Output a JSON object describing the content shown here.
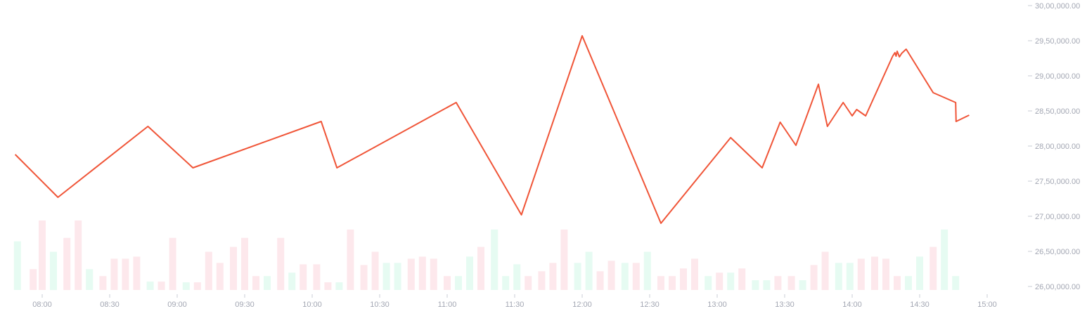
{
  "colors": {
    "line": "#f05538",
    "volume_up": "#e6fbf2",
    "volume_down": "#fde8ec",
    "tick_label": "#a3a7b3",
    "tick_mark": "#c9ccd4"
  },
  "chart_data": {
    "type": "line",
    "title": "",
    "xlabel": "",
    "ylabel": "",
    "grid": false,
    "legend": "none",
    "ylim": [
      2600000,
      3000000
    ],
    "xlim": [
      "07:48",
      "15:00"
    ],
    "y_ticks": [
      "30,00,000.00",
      "29,50,000.00",
      "29,00,000.00",
      "28,50,000.00",
      "28,00,000.00",
      "27,50,000.00",
      "27,00,000.00",
      "26,50,000.00",
      "26,00,000.00"
    ],
    "x_ticks": [
      "08:00",
      "08:30",
      "09:00",
      "09:30",
      "10:00",
      "10:30",
      "11:00",
      "11:30",
      "12:00",
      "12:30",
      "13:00",
      "13:30",
      "14:00",
      "14:30",
      "15:00"
    ],
    "series": [
      {
        "x": [
          "07:48",
          "08:07",
          "08:47",
          "09:07",
          "10:04",
          "10:11",
          "11:04",
          "11:33",
          "12:00",
          "12:35",
          "13:06",
          "13:20",
          "13:28",
          "13:35",
          "13:45",
          "13:49",
          "13:56",
          "14:00",
          "14:02",
          "14:06",
          "14:18",
          "14:19",
          "14:19.5",
          "14:20",
          "14:21",
          "14:22",
          "14:24",
          "14:36",
          "14:46",
          "14:46.2",
          "14:52"
        ],
        "values": [
          2788000,
          2727000,
          2828000,
          2769000,
          2835000,
          2769000,
          2862000,
          2702000,
          2957000,
          2690000,
          2812000,
          2769000,
          2834000,
          2801000,
          2888000,
          2828000,
          2862000,
          2843000,
          2852000,
          2843000,
          2928000,
          2933000,
          2928000,
          2935000,
          2927000,
          2932000,
          2938000,
          2876000,
          2862000,
          2835000,
          2844000
        ]
      }
    ],
    "volume": [
      {
        "x": "07:49",
        "value": 0.7,
        "dir": "up"
      },
      {
        "x": "07:56",
        "value": 0.3,
        "dir": "down"
      },
      {
        "x": "08:00",
        "value": 1.0,
        "dir": "down"
      },
      {
        "x": "08:05",
        "value": 0.55,
        "dir": "up"
      },
      {
        "x": "08:11",
        "value": 0.75,
        "dir": "down"
      },
      {
        "x": "08:16",
        "value": 1.0,
        "dir": "down"
      },
      {
        "x": "08:21",
        "value": 0.3,
        "dir": "up"
      },
      {
        "x": "08:27",
        "value": 0.2,
        "dir": "down"
      },
      {
        "x": "08:32",
        "value": 0.45,
        "dir": "down"
      },
      {
        "x": "08:37",
        "value": 0.45,
        "dir": "down"
      },
      {
        "x": "08:42",
        "value": 0.48,
        "dir": "down"
      },
      {
        "x": "08:48",
        "value": 0.12,
        "dir": "up"
      },
      {
        "x": "08:53",
        "value": 0.12,
        "dir": "down"
      },
      {
        "x": "08:58",
        "value": 0.75,
        "dir": "down"
      },
      {
        "x": "09:04",
        "value": 0.11,
        "dir": "up"
      },
      {
        "x": "09:09",
        "value": 0.11,
        "dir": "down"
      },
      {
        "x": "09:14",
        "value": 0.55,
        "dir": "down"
      },
      {
        "x": "09:19",
        "value": 0.39,
        "dir": "down"
      },
      {
        "x": "09:25",
        "value": 0.62,
        "dir": "down"
      },
      {
        "x": "09:30",
        "value": 0.75,
        "dir": "down"
      },
      {
        "x": "09:35",
        "value": 0.2,
        "dir": "down"
      },
      {
        "x": "09:40",
        "value": 0.2,
        "dir": "up"
      },
      {
        "x": "09:46",
        "value": 0.75,
        "dir": "down"
      },
      {
        "x": "09:51",
        "value": 0.25,
        "dir": "up"
      },
      {
        "x": "09:56",
        "value": 0.37,
        "dir": "down"
      },
      {
        "x": "10:02",
        "value": 0.37,
        "dir": "down"
      },
      {
        "x": "10:07",
        "value": 0.11,
        "dir": "down"
      },
      {
        "x": "10:12",
        "value": 0.11,
        "dir": "up"
      },
      {
        "x": "10:17",
        "value": 0.87,
        "dir": "down"
      },
      {
        "x": "10:23",
        "value": 0.36,
        "dir": "down"
      },
      {
        "x": "10:28",
        "value": 0.55,
        "dir": "down"
      },
      {
        "x": "10:33",
        "value": 0.39,
        "dir": "up"
      },
      {
        "x": "10:38",
        "value": 0.39,
        "dir": "up"
      },
      {
        "x": "10:44",
        "value": 0.45,
        "dir": "down"
      },
      {
        "x": "10:49",
        "value": 0.48,
        "dir": "down"
      },
      {
        "x": "10:54",
        "value": 0.45,
        "dir": "down"
      },
      {
        "x": "11:00",
        "value": 0.2,
        "dir": "down"
      },
      {
        "x": "11:05",
        "value": 0.2,
        "dir": "up"
      },
      {
        "x": "11:10",
        "value": 0.48,
        "dir": "up"
      },
      {
        "x": "11:15",
        "value": 0.62,
        "dir": "down"
      },
      {
        "x": "11:21",
        "value": 0.87,
        "dir": "up"
      },
      {
        "x": "11:26",
        "value": 0.2,
        "dir": "up"
      },
      {
        "x": "11:31",
        "value": 0.37,
        "dir": "up"
      },
      {
        "x": "11:36",
        "value": 0.2,
        "dir": "down"
      },
      {
        "x": "11:42",
        "value": 0.27,
        "dir": "down"
      },
      {
        "x": "11:47",
        "value": 0.39,
        "dir": "down"
      },
      {
        "x": "11:52",
        "value": 0.87,
        "dir": "down"
      },
      {
        "x": "11:58",
        "value": 0.39,
        "dir": "up"
      },
      {
        "x": "12:03",
        "value": 0.55,
        "dir": "up"
      },
      {
        "x": "12:08",
        "value": 0.27,
        "dir": "down"
      },
      {
        "x": "12:13",
        "value": 0.42,
        "dir": "down"
      },
      {
        "x": "12:19",
        "value": 0.39,
        "dir": "up"
      },
      {
        "x": "12:24",
        "value": 0.39,
        "dir": "down"
      },
      {
        "x": "12:29",
        "value": 0.55,
        "dir": "up"
      },
      {
        "x": "12:35",
        "value": 0.2,
        "dir": "down"
      },
      {
        "x": "12:40",
        "value": 0.2,
        "dir": "down"
      },
      {
        "x": "12:45",
        "value": 0.31,
        "dir": "down"
      },
      {
        "x": "12:50",
        "value": 0.45,
        "dir": "down"
      },
      {
        "x": "12:56",
        "value": 0.2,
        "dir": "up"
      },
      {
        "x": "13:01",
        "value": 0.25,
        "dir": "down"
      },
      {
        "x": "13:06",
        "value": 0.25,
        "dir": "up"
      },
      {
        "x": "13:11",
        "value": 0.31,
        "dir": "down"
      },
      {
        "x": "13:17",
        "value": 0.14,
        "dir": "up"
      },
      {
        "x": "13:22",
        "value": 0.14,
        "dir": "up"
      },
      {
        "x": "13:27",
        "value": 0.2,
        "dir": "down"
      },
      {
        "x": "13:33",
        "value": 0.2,
        "dir": "down"
      },
      {
        "x": "13:38",
        "value": 0.14,
        "dir": "up"
      },
      {
        "x": "13:43",
        "value": 0.36,
        "dir": "down"
      },
      {
        "x": "13:48",
        "value": 0.55,
        "dir": "down"
      },
      {
        "x": "13:54",
        "value": 0.39,
        "dir": "up"
      },
      {
        "x": "13:59",
        "value": 0.39,
        "dir": "up"
      },
      {
        "x": "14:04",
        "value": 0.45,
        "dir": "down"
      },
      {
        "x": "14:10",
        "value": 0.48,
        "dir": "down"
      },
      {
        "x": "14:15",
        "value": 0.45,
        "dir": "down"
      },
      {
        "x": "14:20",
        "value": 0.2,
        "dir": "down"
      },
      {
        "x": "14:25",
        "value": 0.2,
        "dir": "up"
      },
      {
        "x": "14:30",
        "value": 0.48,
        "dir": "up"
      },
      {
        "x": "14:36",
        "value": 0.62,
        "dir": "down"
      },
      {
        "x": "14:41",
        "value": 0.87,
        "dir": "up"
      },
      {
        "x": "14:46",
        "value": 0.2,
        "dir": "up"
      }
    ]
  }
}
